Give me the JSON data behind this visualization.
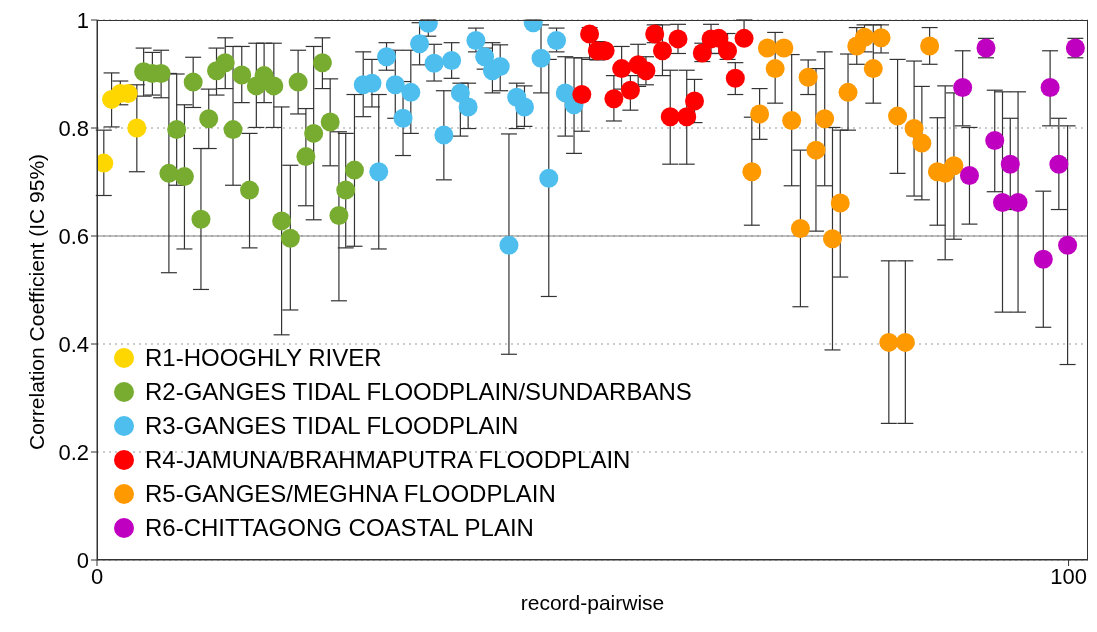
{
  "chart_data": {
    "type": "scatter",
    "xlabel": "record-pairwise",
    "ylabel": "Correlation Coefficient (IC 95%)",
    "xlim": [
      0,
      102
    ],
    "xticks": [
      0,
      100
    ],
    "ylim": [
      0,
      1
    ],
    "yticks": [
      0,
      0.2,
      0.4,
      0.6,
      0.8,
      1
    ],
    "grid": "y",
    "legend": "bottom left",
    "marker": "circle",
    "ref_lines": [
      {
        "axis": "y",
        "value": 0.6,
        "color": "#808080",
        "line_style": "solid"
      }
    ],
    "series": [
      {
        "name": "R1-HOOGHLY RIVER",
        "color": "#ffd700",
        "x": [
          0.7,
          1.5,
          2.4,
          3.2,
          4.1
        ],
        "values": [
          0.735,
          0.853,
          0.864,
          0.864,
          0.8
        ],
        "errors": [
          [
            0.675,
            0.796
          ],
          [
            0.802,
            0.902
          ],
          [
            0.843,
            0.887
          ],
          null,
          [
            0.719,
            0.88
          ]
        ]
      },
      {
        "name": "R2-GANGES TIDAL FLOODPLAIN/SUNDARBANS",
        "color": "#77ac30",
        "x": [
          4.8,
          5.7,
          6.6,
          7.4,
          8.2,
          9.0,
          9.9,
          10.7,
          11.5,
          12.3,
          13.2,
          14.0,
          14.9,
          15.7,
          16.4,
          17.2,
          18.2,
          19.0,
          19.9,
          20.7,
          21.5,
          22.3,
          23.2,
          24.0,
          24.9,
          25.6,
          26.5
        ],
        "values": [
          0.904,
          0.901,
          0.901,
          0.716,
          0.797,
          0.71,
          0.885,
          0.631,
          0.817,
          0.906,
          0.921,
          0.797,
          0.898,
          0.685,
          0.878,
          0.897,
          0.878,
          0.628,
          0.596,
          0.885,
          0.747,
          0.79,
          0.921,
          0.811,
          0.638,
          0.685,
          0.722
        ],
        "errors": [
          [
            0.859,
            0.948
          ],
          [
            0.861,
            0.94
          ],
          [
            0.856,
            0.944
          ],
          [
            0.532,
            0.901
          ],
          [
            0.694,
            0.9
          ],
          [
            0.576,
            0.843
          ],
          [
            0.838,
            0.931
          ],
          [
            0.501,
            0.762
          ],
          [
            0.762,
            0.872
          ],
          [
            0.861,
            0.948
          ],
          [
            0.873,
            0.967
          ],
          [
            0.694,
            0.951
          ],
          [
            0.847,
            0.951
          ],
          [
            0.578,
            0.79
          ],
          [
            0.801,
            0.957
          ],
          [
            0.847,
            0.957
          ],
          [
            0.801,
            0.957
          ],
          [
            0.417,
            0.839
          ],
          [
            0.463,
            0.731
          ],
          [
            0.826,
            0.944
          ],
          [
            0.656,
            0.836
          ],
          [
            0.63,
            0.951
          ],
          [
            0.873,
            0.967
          ],
          [
            0.73,
            0.891
          ],
          [
            0.48,
            0.793
          ],
          [
            0.578,
            0.79
          ],
          [
            0.581,
            0.862
          ]
        ]
      },
      {
        "name": "R3-GANGES TIDAL FLOODPLAIN",
        "color": "#4dbeee",
        "x": [
          27.4,
          28.3,
          29.0,
          29.8,
          30.7,
          31.5,
          32.3,
          33.2,
          34.1,
          34.7,
          35.7,
          36.5,
          37.4,
          38.2,
          39.0,
          39.9,
          40.7,
          41.5,
          42.4,
          43.2,
          44.0,
          44.9,
          45.7,
          46.5,
          47.3,
          48.2,
          49.1
        ],
        "values": [
          0.88,
          0.883,
          0.719,
          0.932,
          0.88,
          0.818,
          0.866,
          0.956,
          0.994,
          0.92,
          0.787,
          0.925,
          0.865,
          0.839,
          0.962,
          0.932,
          0.906,
          0.914,
          0.583,
          0.857,
          0.839,
          0.995,
          0.929,
          0.707,
          0.962,
          0.865,
          0.843
        ],
        "errors": [
          [
            0.821,
            0.941
          ],
          [
            0.839,
            0.927
          ],
          [
            0.576,
            0.862
          ],
          [
            0.907,
            0.958
          ],
          [
            0.818,
            0.944
          ],
          [
            0.749,
            0.886
          ],
          [
            0.79,
            0.944
          ],
          [
            0.917,
            0.995
          ],
          [
            0.97,
            1
          ],
          [
            0.887,
            0.955
          ],
          [
            0.704,
            0.869
          ],
          [
            0.892,
            0.958
          ],
          [
            0.785,
            0.883
          ],
          [
            0.799,
            0.883
          ],
          [
            0.941,
            0.985
          ],
          [
            0.909,
            0.948
          ],
          [
            0.865,
            0.958
          ],
          [
            0.869,
            0.954
          ],
          [
            0.381,
            0.789
          ],
          [
            0.799,
            0.883
          ],
          [
            0.803,
            0.878
          ],
          [
            0.995,
            1
          ],
          [
            0.865,
            0.991
          ],
          [
            0.488,
            0.927
          ],
          [
            0.941,
            0.985
          ],
          [
            0.785,
            0.932
          ],
          [
            0.753,
            0.93
          ]
        ]
      },
      {
        "name": "R4-JAMUNA/BRAHMAPUTRA FLOODPLAIN",
        "color": "#ff0000",
        "x": [
          49.9,
          50.7,
          51.5,
          52.3,
          53.2,
          54.0,
          54.9,
          55.7,
          56.5,
          57.4,
          58.2,
          59.0,
          59.8,
          60.7,
          61.5,
          62.3,
          63.2,
          64.0,
          64.9,
          65.7,
          66.6
        ],
        "values": [
          0.862,
          0.974,
          0.943,
          0.943,
          0.854,
          0.91,
          0.87,
          0.917,
          0.906,
          0.974,
          0.943,
          0.821,
          0.965,
          0.821,
          0.85,
          0.939,
          0.965,
          0.966,
          0.943,
          0.892,
          0.966
        ],
        "errors": [
          [
            0.794,
            0.93
          ],
          [
            0.927,
            0.986
          ],
          [
            0.926,
            0.96
          ],
          null,
          [
            0.813,
            0.897
          ],
          [
            0.872,
            0.951
          ],
          [
            0.833,
            0.897
          ],
          [
            0.877,
            0.955
          ],
          [
            0.88,
            0.932
          ],
          [
            0.958,
            0.991
          ],
          [
            0.897,
            0.991
          ],
          [
            0.733,
            0.907
          ],
          [
            0.938,
            0.992
          ],
          [
            0.733,
            0.907
          ],
          [
            0.81,
            0.89
          ],
          [
            0.923,
            0.957
          ],
          [
            0.938,
            0.992
          ],
          [
            0.938,
            0.966
          ],
          [
            0.927,
            0.975
          ],
          [
            0.862,
            0.921
          ],
          [
            0.966,
            1
          ]
        ]
      },
      {
        "name": "R5-GANGES/MEGHNA FLOODPLAIN",
        "color": "#ff9900",
        "x": [
          67.4,
          68.2,
          69.0,
          69.8,
          70.7,
          71.5,
          72.4,
          73.2,
          74.0,
          74.9,
          75.7,
          76.5,
          77.3,
          78.2,
          79.0,
          79.9,
          80.7,
          81.5,
          82.4,
          83.2,
          84.1,
          84.9,
          85.7,
          86.5,
          87.3,
          88.2
        ],
        "values": [
          0.719,
          0.826,
          0.948,
          0.91,
          0.948,
          0.814,
          0.614,
          0.894,
          0.759,
          0.817,
          0.595,
          0.661,
          0.866,
          0.952,
          0.968,
          0.91,
          0.967,
          0.403,
          0.822,
          0.403,
          0.799,
          0.772,
          0.952,
          0.719,
          0.716,
          0.73
        ],
        "errors": [
          [
            0.62,
            0.82
          ],
          [
            0.779,
            0.873
          ],
          null,
          [
            0.846,
            0.977
          ],
          null,
          [
            0.693,
            0.936
          ],
          [
            0.469,
            0.759
          ],
          [
            0.862,
            0.926
          ],
          [
            0.609,
            0.91
          ],
          [
            0.693,
            0.941
          ],
          [
            0.389,
            0.801
          ],
          [
            0.524,
            0.796
          ],
          [
            0.796,
            0.937
          ],
          [
            0.918,
            0.986
          ],
          [
            0.941,
            0.991
          ],
          [
            0.846,
            0.991
          ],
          [
            0.939,
            0.991
          ],
          [
            0.253,
            0.554
          ],
          [
            0.716,
            0.927
          ],
          [
            0.253,
            0.554
          ],
          [
            0.674,
            0.924
          ],
          [
            0.667,
            0.877
          ],
          [
            0.918,
            0.986
          ],
          [
            0.62,
            0.819
          ],
          [
            0.556,
            0.878
          ],
          [
            0.594,
            0.865
          ]
        ]
      },
      {
        "name": "R6-CHITTAGONG COASTAL PLAIN",
        "color": "#c000c0",
        "x": [
          89.1,
          89.8,
          91.5,
          92.4,
          93.2,
          94.0,
          94.8,
          97.4,
          98.1,
          99.0,
          99.9,
          100.7
        ],
        "values": [
          0.875,
          0.712,
          0.948,
          0.777,
          0.662,
          0.733,
          0.662,
          0.557,
          0.875,
          0.733,
          0.583,
          0.948
        ],
        "errors": [
          [
            0.804,
            0.943
          ],
          [
            0.622,
            0.801
          ],
          [
            0.93,
            0.966
          ],
          [
            0.682,
            0.87
          ],
          [
            0.459,
            0.867
          ],
          [
            0.649,
            0.818
          ],
          [
            0.459,
            0.867
          ],
          [
            0.431,
            0.683
          ],
          [
            0.804,
            0.943
          ],
          [
            0.649,
            0.818
          ],
          [
            0.362,
            0.804
          ],
          [
            0.93,
            0.966
          ]
        ]
      }
    ]
  }
}
